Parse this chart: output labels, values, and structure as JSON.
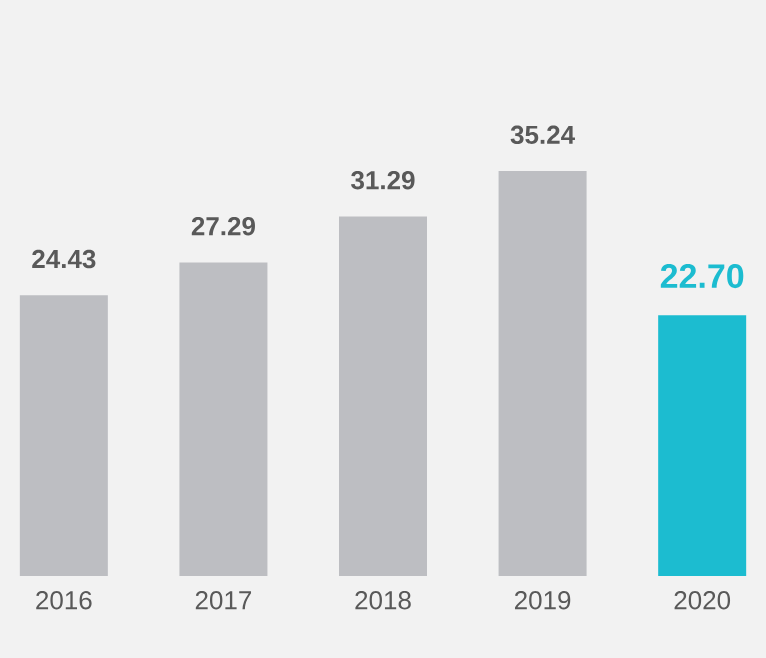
{
  "chart_data": {
    "type": "bar",
    "categories": [
      "2016",
      "2017",
      "2018",
      "2019",
      "2020"
    ],
    "values": [
      24.43,
      27.29,
      31.29,
      35.24,
      22.7
    ],
    "value_labels": [
      "24.43",
      "27.29",
      "31.29",
      "35.24",
      "22.70"
    ],
    "colors": [
      "#bdbec2",
      "#bdbec2",
      "#bdbec2",
      "#bdbec2",
      "#1cbcd0"
    ]
  }
}
